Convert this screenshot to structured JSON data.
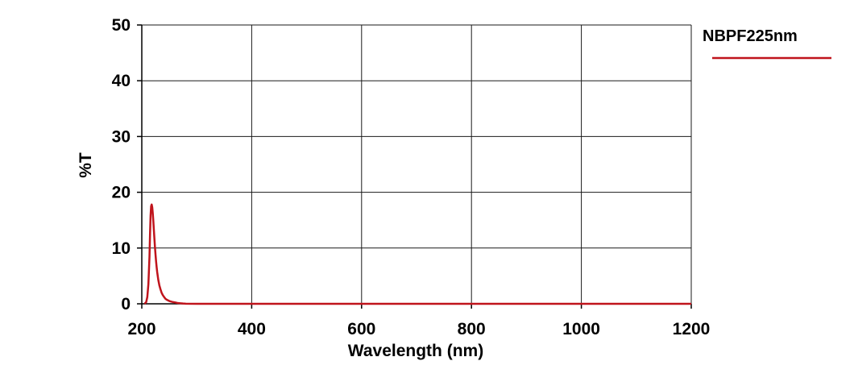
{
  "chart_data": {
    "type": "line",
    "xlabel": "Wavelength (nm)",
    "ylabel": "%T",
    "xlim": [
      200,
      1200
    ],
    "ylim": [
      0,
      50
    ],
    "x_ticks": [
      "200",
      "400",
      "600",
      "800",
      "1000",
      "1200"
    ],
    "y_ticks": [
      "0",
      "10",
      "20",
      "30",
      "40",
      "50"
    ],
    "grid": true,
    "legend_position": "top-right",
    "series": [
      {
        "name": "NBPF225nm",
        "color": "#c0141c",
        "x": [
          205,
          208,
          210,
          212,
          214,
          215,
          216,
          217,
          218,
          219,
          220,
          221,
          222,
          223,
          224,
          225,
          226,
          227,
          228,
          230,
          232,
          234,
          236,
          238,
          240,
          243,
          246,
          250,
          255,
          260,
          265,
          270,
          275,
          280,
          300,
          400,
          600,
          800,
          1000,
          1200
        ],
        "y": [
          0,
          0.3,
          1.2,
          3.5,
          8.5,
          12.5,
          15.8,
          17.5,
          17.8,
          17.3,
          16.2,
          14.8,
          13.2,
          11.6,
          10.1,
          8.8,
          7.6,
          6.6,
          5.7,
          4.3,
          3.3,
          2.6,
          2.0,
          1.6,
          1.3,
          0.9,
          0.7,
          0.5,
          0.35,
          0.25,
          0.15,
          0.1,
          0.05,
          0.02,
          0,
          0,
          0,
          0,
          0,
          0
        ]
      }
    ]
  }
}
